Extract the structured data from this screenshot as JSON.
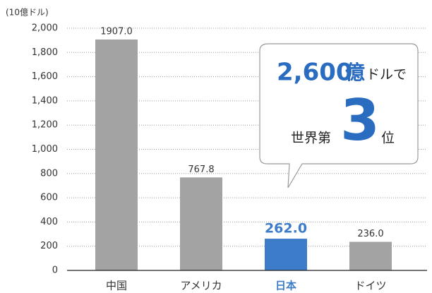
{
  "chart_data": {
    "type": "bar",
    "unit_label": "(10億ドル)",
    "categories": [
      "中国",
      "アメリカ",
      "日本",
      "ドイツ"
    ],
    "values": [
      1907.0,
      767.8,
      262.0,
      236.0
    ],
    "value_labels": [
      "1907.0",
      "767.8",
      "262.0",
      "236.0"
    ],
    "color": "#a3a3a3",
    "colors": [
      "#a3a3a3",
      "#a3a3a3",
      "#3d7cc9",
      "#a3a3a3"
    ],
    "highlight_color": "#3d7cc9",
    "ylim": [
      0,
      2000
    ],
    "yticks": [
      0,
      200,
      400,
      600,
      800,
      {
        "value": 1000,
        "label": "1,000"
      },
      {
        "value": 1200,
        "label": "1,200"
      },
      {
        "value": 1400,
        "label": "1,400"
      },
      {
        "value": 1600,
        "label": "1,600"
      },
      {
        "value": 1800,
        "label": "1,800"
      },
      {
        "value": 2000,
        "label": "2,000"
      }
    ],
    "grid": true,
    "annotation": {
      "amount": "2,600",
      "amount_unit": "億",
      "amount_suffix": "ドルで",
      "rank_prefix": "世界第",
      "rank": "3",
      "rank_suffix": "位"
    }
  }
}
